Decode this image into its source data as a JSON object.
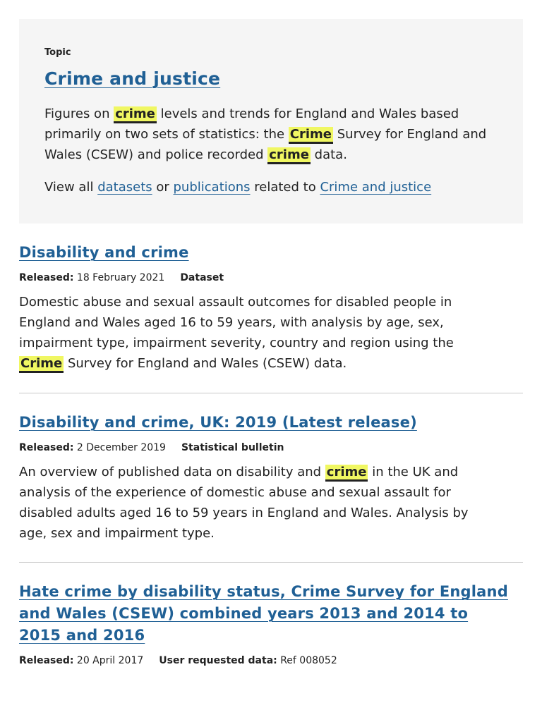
{
  "topic": {
    "label": "Topic",
    "title": "Crime and justice",
    "desc_parts": [
      {
        "text": "Figures on ",
        "hl": false
      },
      {
        "text": "crime",
        "hl": true
      },
      {
        "text": " levels and trends for England and Wales based primarily on two sets of statistics: the ",
        "hl": false
      },
      {
        "text": "Crime",
        "hl": true
      },
      {
        "text": " Survey for England and Wales (CSEW) and police recorded ",
        "hl": false
      },
      {
        "text": "crime",
        "hl": true
      },
      {
        "text": " data.",
        "hl": false
      }
    ],
    "links": {
      "prefix": "View all ",
      "datasets": "datasets",
      "or": " or ",
      "publications": "publications",
      "related": " related to ",
      "topic_link": "Crime and justice"
    }
  },
  "results": [
    {
      "title": "Disability and crime",
      "released_label": "Released:",
      "released_date": "18 February 2021",
      "type_label": "Dataset",
      "type_value": "",
      "desc_parts": [
        {
          "text": "Domestic abuse and sexual assault outcomes for disabled people in England and Wales aged 16 to 59 years, with analysis by age, sex, impairment type, impairment severity, country and region using the ",
          "hl": false
        },
        {
          "text": "Crime",
          "hl": true
        },
        {
          "text": " Survey for England and Wales (CSEW) data.",
          "hl": false
        }
      ]
    },
    {
      "title": "Disability and crime, UK: 2019 (Latest release)",
      "released_label": "Released:",
      "released_date": "2 December 2019",
      "type_label": "Statistical bulletin",
      "type_value": "",
      "desc_parts": [
        {
          "text": "An overview of published data on disability and ",
          "hl": false
        },
        {
          "text": "crime",
          "hl": true
        },
        {
          "text": " in the UK and analysis of the experience of domestic abuse and sexual assault for disabled adults aged 16 to 59 years in England and Wales. Analysis by age, sex and impairment type.",
          "hl": false
        }
      ]
    },
    {
      "title": "Hate crime by disability status, Crime Survey for England and Wales (CSEW) combined years 2013 and 2014 to 2015 and 2016",
      "released_label": "Released:",
      "released_date": "20 April 2017",
      "type_label": "User requested data:",
      "type_value": "Ref 008052",
      "desc_parts": []
    }
  ],
  "colors": {
    "link": "#206095",
    "highlight": "#f0f762",
    "panel": "#f5f5f5"
  }
}
